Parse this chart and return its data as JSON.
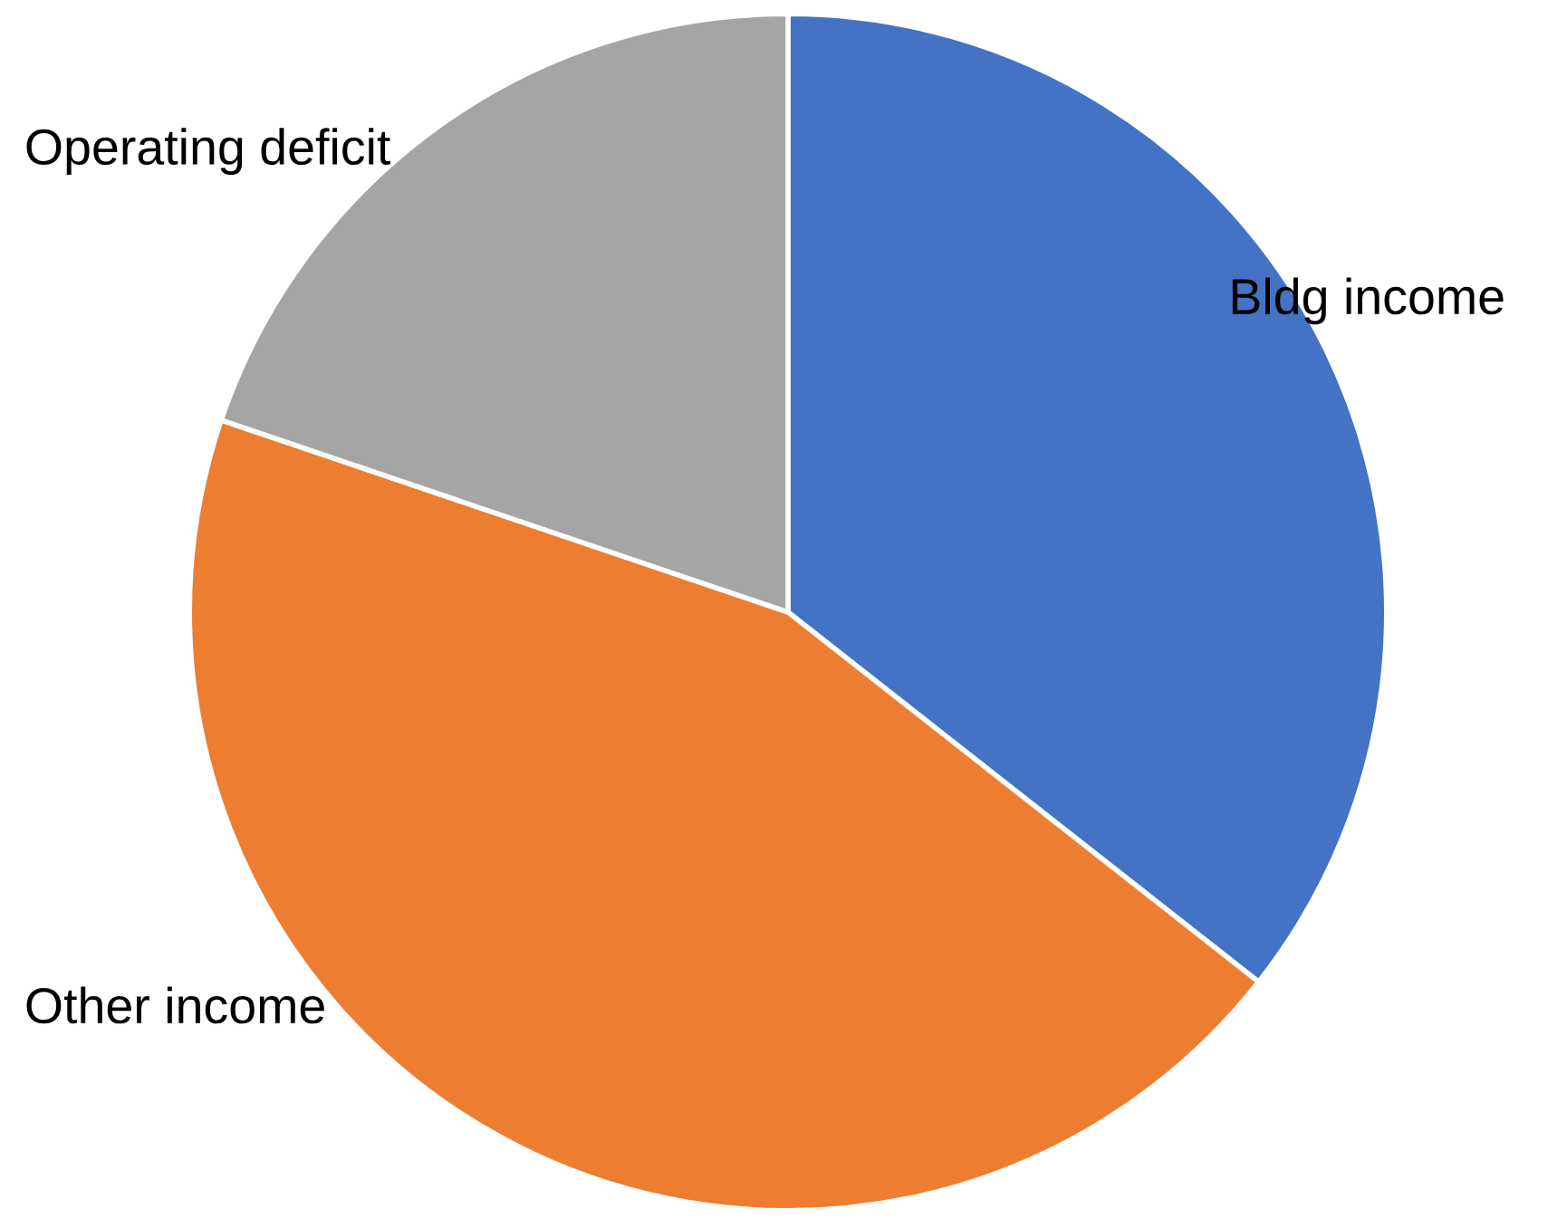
{
  "chart_data": {
    "type": "pie",
    "categories": [
      "Bldg income",
      "Other income",
      "Operating deficit"
    ],
    "values": [
      35.6,
      44.6,
      19.8
    ],
    "colors": [
      "#4472c4",
      "#ed7d31",
      "#a5a5a5"
    ],
    "legend": false
  }
}
